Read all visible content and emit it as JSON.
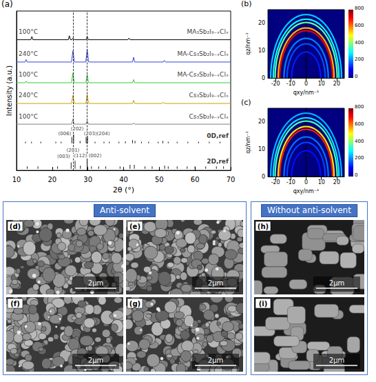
{
  "chart_data": [
    {
      "type": "line",
      "panel": "(a)",
      "x_label": "2θ (°)",
      "y_label": "Intensity (a.u.)",
      "xlim": [
        10,
        70
      ],
      "xticks": [
        10,
        20,
        30,
        40,
        50,
        60,
        70
      ],
      "ylim": [
        0,
        100
      ],
      "tick_labels": "x",
      "grid": false,
      "reference_lines": [
        25.8,
        29.8
      ],
      "series": [
        {
          "name": "Cs₃Sb₂I₉₋ₓClₓ",
          "temperature": "100°C",
          "color": "#808080",
          "baseline": 29,
          "x": [
            10,
            18,
            25.4,
            25.8,
            26.2,
            29.4,
            29.8,
            30.2,
            42.5,
            42.8,
            43.1,
            70
          ],
          "values": [
            29,
            29,
            29,
            32,
            29,
            29,
            31,
            29,
            29,
            29.8,
            29,
            29
          ]
        },
        {
          "name": "Cs₃Sb₂I₉₋ₓClₓ",
          "temperature": "240°C",
          "color": "#c8a000",
          "baseline": 42,
          "x": [
            10,
            25.4,
            25.8,
            26.2,
            29.4,
            29.8,
            30.2,
            42.5,
            42.8,
            43.1,
            50.8,
            51.1,
            51.4,
            70
          ],
          "values": [
            42,
            42,
            47,
            42,
            42,
            47.5,
            42,
            42,
            44,
            42,
            42,
            42.8,
            42,
            42
          ]
        },
        {
          "name": "MA-Cs₃Sb₂I₉₋ₓClₓ",
          "temperature": "100°C",
          "color": "#33cc33",
          "baseline": 55,
          "x": [
            10,
            12.4,
            12.7,
            13,
            25.4,
            25.8,
            26.2,
            29.4,
            29.8,
            30.2,
            42.5,
            42.8,
            43.1,
            70
          ],
          "values": [
            55,
            55,
            56,
            55,
            55,
            61,
            55,
            55,
            60,
            55,
            55,
            57,
            55,
            55
          ]
        },
        {
          "name": "MA-Cs₃Sb₂I₉₋ₓClₓ",
          "temperature": "240°C",
          "color": "#3344dd",
          "baseline": 68,
          "x": [
            10,
            12.4,
            12.7,
            13,
            25.4,
            25.8,
            26.2,
            29.4,
            29.8,
            30.2,
            42.5,
            42.8,
            43.1,
            51.1,
            51.4,
            51.7,
            70
          ],
          "values": [
            68,
            68,
            69.5,
            68,
            68,
            75,
            68,
            68,
            76,
            68,
            68,
            71,
            68,
            68,
            69,
            68,
            68
          ]
        },
        {
          "name": "MA₃Sb₂I₉₋ₓClₓ",
          "temperature": "100°C",
          "color": "#000000",
          "baseline": 82,
          "x": [
            10,
            14,
            14.3,
            14.6,
            24.5,
            24.8,
            25.1,
            25.5,
            25.8,
            26.1,
            29.5,
            29.8,
            30.1,
            41.2,
            41.5,
            41.8,
            70
          ],
          "values": [
            82,
            82,
            84,
            82,
            82,
            84.5,
            82,
            82,
            83,
            82,
            82,
            84,
            82,
            82,
            83,
            82,
            82
          ]
        }
      ],
      "references": [
        {
          "name": "0D,ref",
          "type": "stick",
          "color": "#000000",
          "baseline": 17,
          "x": [
            12.5,
            14.2,
            16.8,
            21,
            22.5,
            25.5,
            26,
            27.8,
            29.5,
            29.9,
            32,
            34.5,
            36,
            38.7,
            40.5,
            42.5,
            43.2,
            45,
            47,
            49.7,
            51,
            52.5,
            55,
            58,
            61,
            64,
            67
          ],
          "values": [
            18,
            18,
            18,
            18,
            18,
            21,
            22.5,
            18.5,
            21,
            21.5,
            18,
            18,
            18,
            18,
            18.2,
            19,
            18.5,
            18,
            18,
            18,
            18.5,
            18,
            18,
            18,
            18,
            18,
            18
          ],
          "peak_labels": [
            {
              "text": "(006)",
              "x": 23.5,
              "y": 23
            },
            {
              "text": "(202)",
              "x": 27,
              "y": 26.2
            },
            {
              "text": "(203)(204)",
              "x": 32.5,
              "y": 23
            }
          ]
        },
        {
          "name": "2D,ref",
          "type": "stick",
          "color": "#000000",
          "baseline": 1,
          "x": [
            13,
            16,
            21.5,
            25.3,
            26.4,
            27.9,
            29.8,
            31,
            33,
            35,
            39,
            41.8,
            43,
            46,
            48,
            51.5,
            52.5,
            55,
            57.8,
            60,
            63,
            66,
            68
          ],
          "values": [
            2.5,
            2.5,
            2.5,
            5,
            6,
            3,
            7,
            2.5,
            2.5,
            2.5,
            2.5,
            3.5,
            3.5,
            2.5,
            2.5,
            3,
            2.5,
            2.5,
            2.5,
            2.5,
            2.5,
            2.5,
            2.5
          ],
          "peak_labels": [
            {
              "text": "(003)",
              "x": 23.2,
              "y": 8.5
            },
            {
              "text": "(201)",
              "x": 25.8,
              "y": 12.5
            },
            {
              "text": "(112)",
              "x": 27.9,
              "y": 9
            },
            {
              "text": "(002)",
              "x": 32,
              "y": 9
            }
          ]
        }
      ]
    },
    {
      "type": "rings",
      "panel": "(b)",
      "x_label": "qxy/nm⁻¹",
      "y_label": "qz/nm⁻¹",
      "xlim": [
        -25,
        25
      ],
      "xticks": [
        -20,
        -10,
        0,
        10,
        20
      ],
      "ylim": [
        0,
        25
      ],
      "yticks": [
        0,
        10,
        20
      ],
      "grid": false,
      "rings": [
        {
          "q": 9.5,
          "intensity": 120
        },
        {
          "q": 12.5,
          "intensity": 160
        },
        {
          "q": 14.5,
          "intensity": 200
        },
        {
          "q": 17.3,
          "intensity": 720
        },
        {
          "q": 18.3,
          "intensity": 560
        },
        {
          "q": 20.3,
          "intensity": 380
        },
        {
          "q": 21.5,
          "intensity": 300
        },
        {
          "q": 23.2,
          "intensity": 260
        }
      ],
      "colorbar": {
        "range": [
          0,
          800
        ],
        "ticks": [
          0,
          200,
          400,
          600,
          800
        ]
      }
    },
    {
      "type": "rings",
      "panel": "(c)",
      "x_label": "qxy/nm⁻¹",
      "y_label": "qz/nm⁻¹",
      "xlim": [
        -25,
        25
      ],
      "xticks": [
        -20,
        -10,
        0,
        10,
        20
      ],
      "ylim": [
        0,
        25
      ],
      "yticks": [
        0,
        10,
        20
      ],
      "grid": false,
      "rings": [
        {
          "q": 9.5,
          "intensity": 110
        },
        {
          "q": 12.5,
          "intensity": 150
        },
        {
          "q": 14.5,
          "intensity": 190
        },
        {
          "q": 17.3,
          "intensity": 680
        },
        {
          "q": 18.3,
          "intensity": 520
        },
        {
          "q": 20.3,
          "intensity": 360
        },
        {
          "q": 21.5,
          "intensity": 280
        },
        {
          "q": 23.2,
          "intensity": 240
        }
      ],
      "colorbar": {
        "range": [
          0,
          800
        ],
        "ticks": [
          0,
          200,
          400,
          600,
          800
        ]
      }
    }
  ],
  "sem": {
    "groups": [
      {
        "title": "Anti-solvent",
        "panels": [
          {
            "label": "(d)",
            "scale_bar": "2μm"
          },
          {
            "label": "(e)",
            "scale_bar": "2μm"
          },
          {
            "label": "(f)",
            "scale_bar": "2μm"
          },
          {
            "label": "(g)",
            "scale_bar": "2μm"
          }
        ]
      },
      {
        "title": "Without anti-solvent",
        "panels": [
          {
            "label": "(h)",
            "scale_bar": "2μm"
          },
          {
            "label": "(i)",
            "scale_bar": "2μm"
          }
        ]
      }
    ]
  }
}
